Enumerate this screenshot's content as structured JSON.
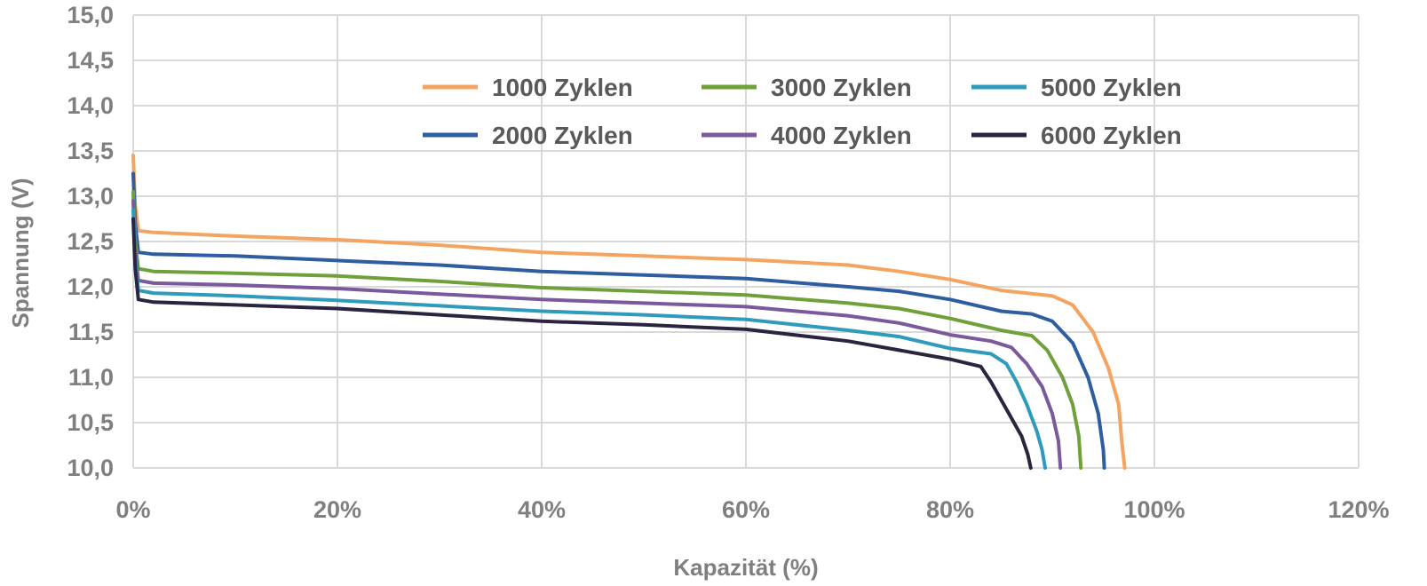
{
  "chart_data": {
    "type": "line",
    "title": "",
    "xlabel": "Kapazität (%)",
    "ylabel": "Spannung (V)",
    "xlim": [
      0,
      120
    ],
    "ylim": [
      10.0,
      15.0
    ],
    "x_ticks": [
      0,
      20,
      40,
      60,
      80,
      100,
      120
    ],
    "x_tick_labels": [
      "0%",
      "20%",
      "40%",
      "60%",
      "80%",
      "100%",
      "120%"
    ],
    "y_ticks": [
      10.0,
      10.5,
      11.0,
      11.5,
      12.0,
      12.5,
      13.0,
      13.5,
      14.0,
      14.5,
      15.0
    ],
    "y_tick_labels": [
      "10,0",
      "10,5",
      "11,0",
      "11,5",
      "12,0",
      "12,5",
      "13,0",
      "13,5",
      "14,0",
      "14,5",
      "15,0"
    ],
    "grid": true,
    "legend_position": "top-center",
    "series": [
      {
        "name": "1000 Zyklen",
        "color": "#f4a460",
        "points": [
          [
            0,
            13.45
          ],
          [
            0.2,
            12.9
          ],
          [
            0.5,
            12.62
          ],
          [
            2,
            12.6
          ],
          [
            10,
            12.56
          ],
          [
            20,
            12.52
          ],
          [
            30,
            12.46
          ],
          [
            40,
            12.38
          ],
          [
            50,
            12.34
          ],
          [
            60,
            12.3
          ],
          [
            70,
            12.24
          ],
          [
            75,
            12.17
          ],
          [
            80,
            12.08
          ],
          [
            85,
            11.96
          ],
          [
            90,
            11.9
          ],
          [
            92,
            11.8
          ],
          [
            94,
            11.5
          ],
          [
            95.5,
            11.1
          ],
          [
            96.5,
            10.7
          ],
          [
            96.8,
            10.3
          ],
          [
            97.1,
            10.0
          ]
        ]
      },
      {
        "name": "2000 Zyklen",
        "color": "#2e5da0",
        "points": [
          [
            0,
            13.25
          ],
          [
            0.2,
            12.7
          ],
          [
            0.5,
            12.38
          ],
          [
            2,
            12.36
          ],
          [
            10,
            12.34
          ],
          [
            20,
            12.29
          ],
          [
            30,
            12.24
          ],
          [
            40,
            12.17
          ],
          [
            50,
            12.13
          ],
          [
            60,
            12.09
          ],
          [
            70,
            12.0
          ],
          [
            75,
            11.95
          ],
          [
            80,
            11.86
          ],
          [
            85,
            11.73
          ],
          [
            88,
            11.7
          ],
          [
            90,
            11.62
          ],
          [
            92,
            11.38
          ],
          [
            93.5,
            11.0
          ],
          [
            94.5,
            10.6
          ],
          [
            95,
            10.2
          ],
          [
            95.1,
            10.0
          ]
        ]
      },
      {
        "name": "3000 Zyklen",
        "color": "#70a03a",
        "points": [
          [
            0,
            13.05
          ],
          [
            0.2,
            12.5
          ],
          [
            0.5,
            12.2
          ],
          [
            2,
            12.17
          ],
          [
            10,
            12.15
          ],
          [
            20,
            12.12
          ],
          [
            30,
            12.06
          ],
          [
            40,
            11.99
          ],
          [
            50,
            11.95
          ],
          [
            60,
            11.91
          ],
          [
            70,
            11.82
          ],
          [
            75,
            11.76
          ],
          [
            80,
            11.65
          ],
          [
            85,
            11.52
          ],
          [
            88,
            11.46
          ],
          [
            89.5,
            11.3
          ],
          [
            91,
            11.0
          ],
          [
            92,
            10.7
          ],
          [
            92.6,
            10.35
          ],
          [
            92.8,
            10.0
          ]
        ]
      },
      {
        "name": "4000 Zyklen",
        "color": "#7a5a9c",
        "points": [
          [
            0,
            12.95
          ],
          [
            0.2,
            12.4
          ],
          [
            0.5,
            12.07
          ],
          [
            2,
            12.04
          ],
          [
            10,
            12.02
          ],
          [
            20,
            11.98
          ],
          [
            30,
            11.92
          ],
          [
            40,
            11.86
          ],
          [
            50,
            11.82
          ],
          [
            60,
            11.78
          ],
          [
            70,
            11.68
          ],
          [
            75,
            11.6
          ],
          [
            80,
            11.47
          ],
          [
            84,
            11.4
          ],
          [
            86,
            11.33
          ],
          [
            87.5,
            11.15
          ],
          [
            89,
            10.9
          ],
          [
            90,
            10.6
          ],
          [
            90.6,
            10.3
          ],
          [
            90.8,
            10.0
          ]
        ]
      },
      {
        "name": "5000 Zyklen",
        "color": "#2e9bbd",
        "points": [
          [
            0,
            12.85
          ],
          [
            0.2,
            12.3
          ],
          [
            0.5,
            11.96
          ],
          [
            2,
            11.93
          ],
          [
            10,
            11.9
          ],
          [
            20,
            11.85
          ],
          [
            30,
            11.79
          ],
          [
            40,
            11.73
          ],
          [
            50,
            11.69
          ],
          [
            60,
            11.64
          ],
          [
            70,
            11.52
          ],
          [
            75,
            11.45
          ],
          [
            80,
            11.32
          ],
          [
            84,
            11.26
          ],
          [
            85.5,
            11.15
          ],
          [
            86.5,
            10.95
          ],
          [
            87.5,
            10.7
          ],
          [
            88.5,
            10.4
          ],
          [
            89,
            10.2
          ],
          [
            89.3,
            10.0
          ]
        ]
      },
      {
        "name": "6000 Zyklen",
        "color": "#2b2440",
        "points": [
          [
            0,
            12.75
          ],
          [
            0.2,
            12.2
          ],
          [
            0.5,
            11.86
          ],
          [
            2,
            11.83
          ],
          [
            10,
            11.8
          ],
          [
            20,
            11.76
          ],
          [
            30,
            11.69
          ],
          [
            40,
            11.62
          ],
          [
            50,
            11.58
          ],
          [
            60,
            11.53
          ],
          [
            70,
            11.4
          ],
          [
            75,
            11.3
          ],
          [
            80,
            11.2
          ],
          [
            83,
            11.12
          ],
          [
            84,
            10.95
          ],
          [
            85,
            10.75
          ],
          [
            86,
            10.55
          ],
          [
            87,
            10.35
          ],
          [
            87.6,
            10.15
          ],
          [
            87.9,
            10.0
          ]
        ]
      }
    ]
  }
}
